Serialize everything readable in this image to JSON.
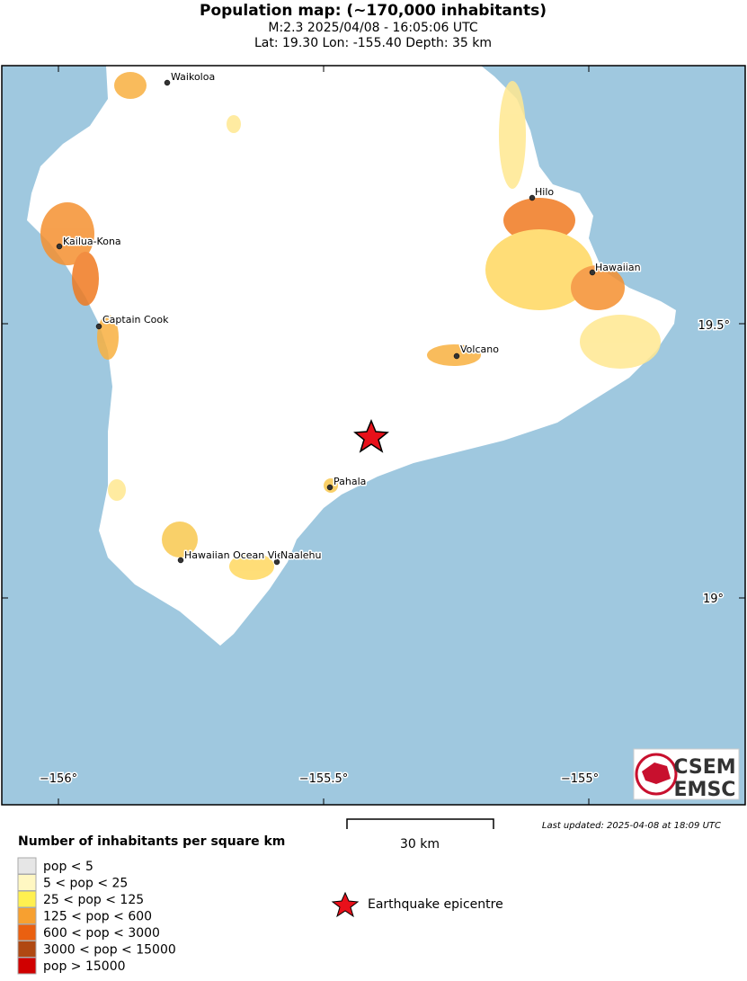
{
  "header": {
    "title": "Population map: (~170,000 inhabitants)",
    "event": "M:2.3 2025/04/08 - 16:05:06 UTC",
    "location": "Lat: 19.30 Lon: -155.40 Depth: 35 km"
  },
  "map": {
    "lon_labels": [
      "−156°",
      "−155.5°",
      "−155°"
    ],
    "lat_labels": [
      "19.5°",
      "19°"
    ],
    "cities": [
      "Waikoloa",
      "Kailua-Kona",
      "Captain Cook",
      "Hilo",
      "Hawaiian",
      "Volcano",
      "Pahala",
      "Hawaiian Ocean View",
      "Naalehu"
    ]
  },
  "scale_label": "30 km",
  "updated": "Last updated: 2025-04-08 at 18:09 UTC",
  "legend": {
    "title": "Number of inhabitants per square km",
    "classes": [
      "pop < 5",
      "5 < pop < 25",
      "25 < pop < 125",
      "125 < pop < 600",
      "600 < pop < 3000",
      "3000 < pop < 15000",
      "pop > 15000"
    ],
    "epicentre": "Earthquake epicentre"
  },
  "logo": {
    "top": "CSEM",
    "bottom": "EMSC"
  }
}
